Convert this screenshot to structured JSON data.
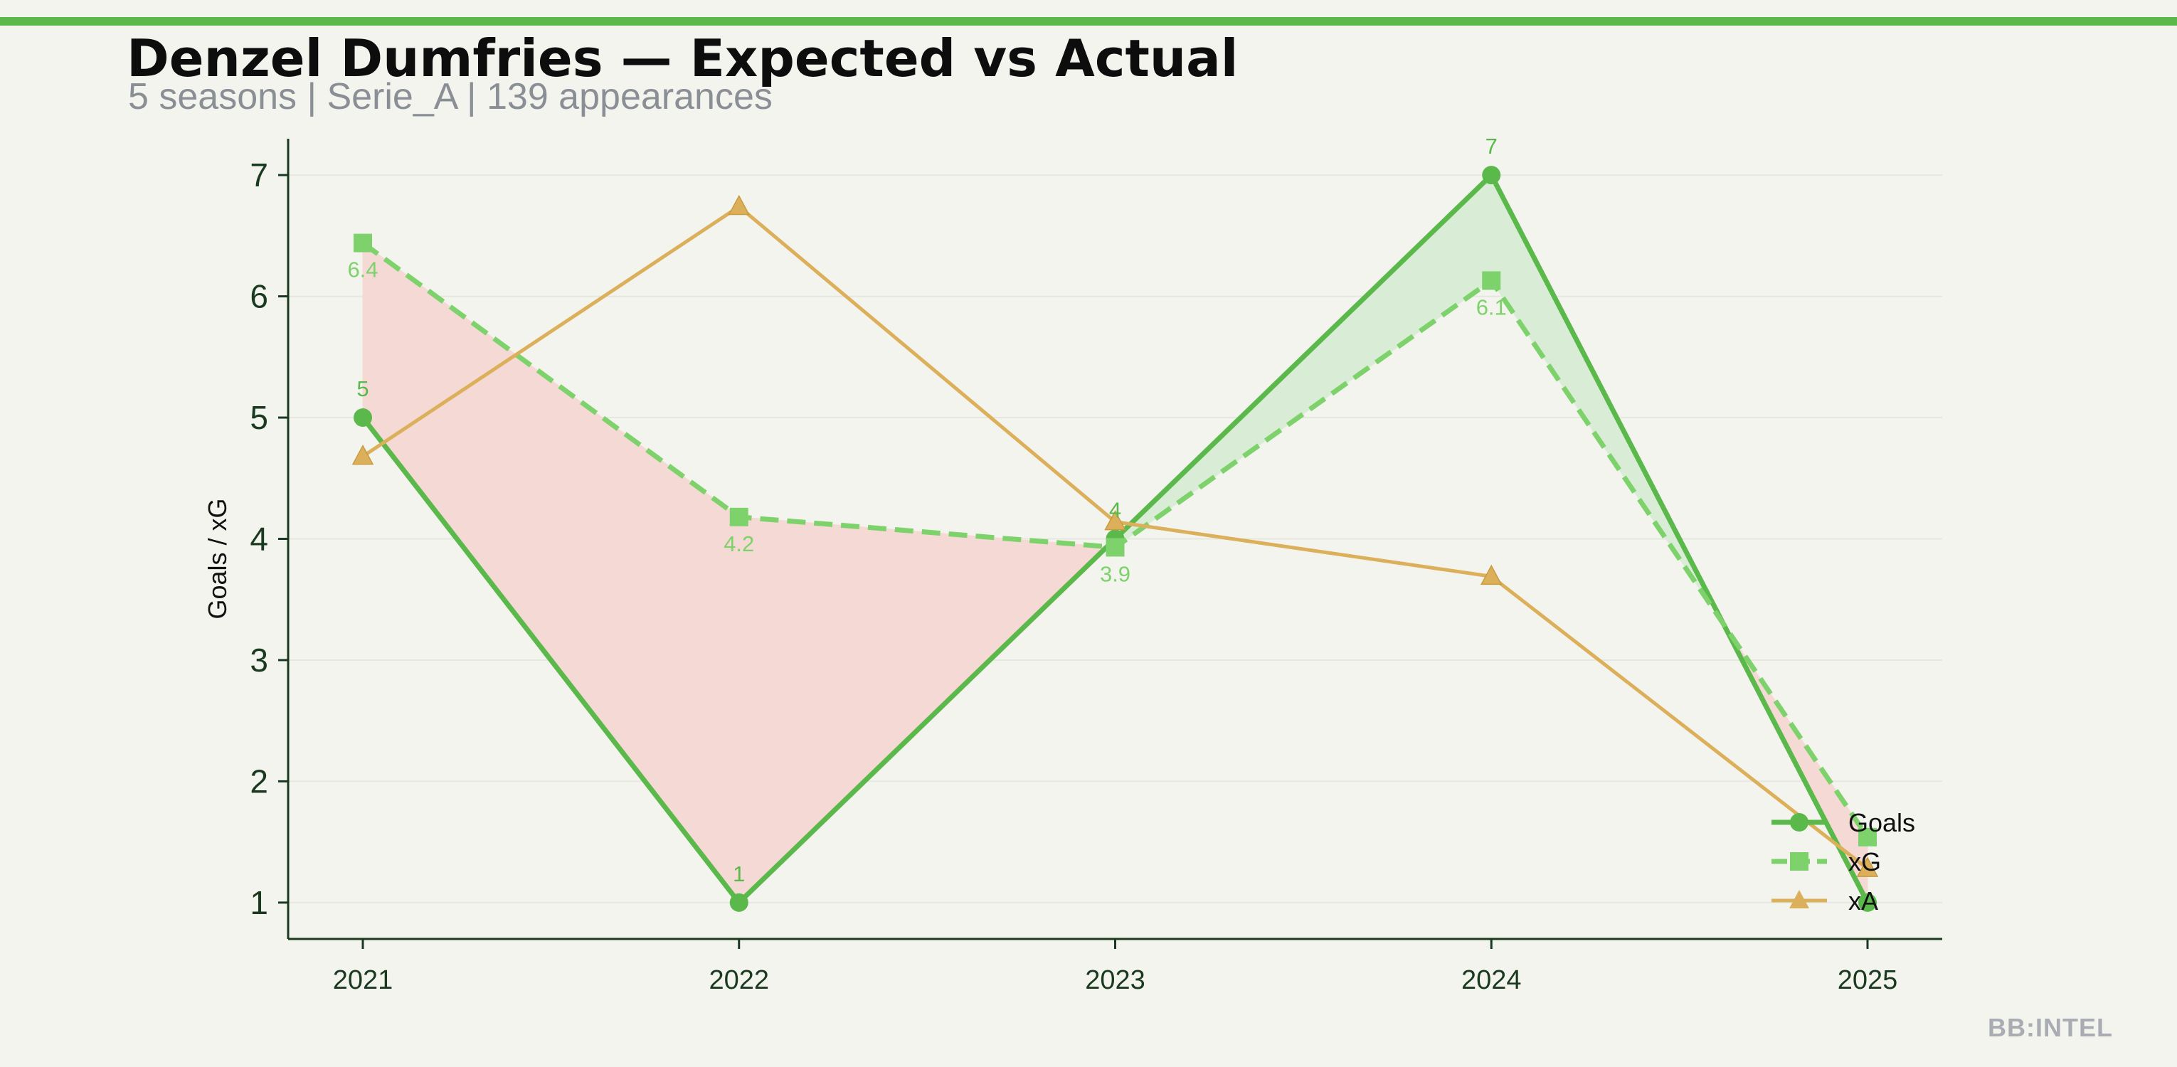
{
  "header": {
    "title": "Denzel Dumfries — Expected vs Actual",
    "subtitle": "5 seasons | Serie_A | 139 appearances"
  },
  "brand": "BB:INTEL",
  "colors": {
    "background": "#f4f4ef",
    "accent": "#5ab94a",
    "goals": "#5ab94a",
    "xg": "#7ed26b",
    "xa": "#dcb05a",
    "underperform_fill": "#f5d9d4",
    "overperform_fill": "#d9ecd5",
    "axis": "#1a3a1f"
  },
  "chart_data": {
    "type": "line",
    "x": [
      "2021",
      "2022",
      "2023",
      "2024",
      "2025"
    ],
    "ylabel": "Goals / xG",
    "xlabel": "",
    "ylim": [
      0.7,
      7.3
    ],
    "yticks": [
      1,
      2,
      3,
      4,
      5,
      6,
      7
    ],
    "grid": true,
    "legend": "bottom-right",
    "series": [
      {
        "name": "Goals",
        "values": [
          5,
          1,
          4,
          7,
          1
        ],
        "labels": [
          "5",
          "1",
          "4",
          "7",
          ""
        ],
        "marker": "circle",
        "style": "solid",
        "color": "#5ab94a"
      },
      {
        "name": "xG",
        "values": [
          6.44,
          4.18,
          3.93,
          6.13,
          1.54
        ],
        "labels": [
          "6.4",
          "4.2",
          "3.9",
          "6.1",
          ""
        ],
        "marker": "square",
        "style": "dashed",
        "color": "#7ed26b"
      },
      {
        "name": "xA",
        "values": [
          4.68,
          6.74,
          4.14,
          3.69,
          1.28
        ],
        "labels": [
          "",
          "",
          "",
          "",
          ""
        ],
        "marker": "triangle",
        "style": "solid",
        "color": "#dcb05a"
      }
    ]
  }
}
